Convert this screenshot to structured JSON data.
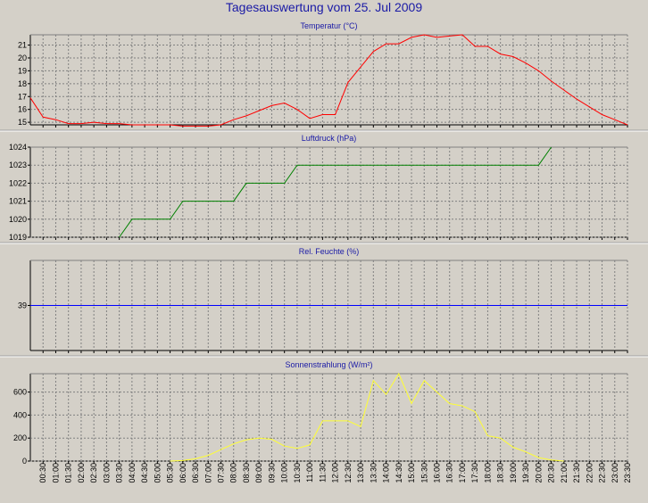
{
  "title": "Tagesauswertung vom 25. Jul 2009",
  "chart_data": [
    {
      "type": "line",
      "title": "Temperatur (°C)",
      "color": "#ff0000",
      "ylim": [
        14.8,
        21.8
      ],
      "yticks": [
        15,
        16,
        17,
        18,
        19,
        20,
        21
      ],
      "x": [
        0,
        0.5,
        1,
        1.5,
        2,
        2.5,
        3,
        3.5,
        4,
        4.5,
        5,
        5.5,
        6,
        6.5,
        7,
        7.5,
        8,
        8.5,
        9,
        9.5,
        10,
        10.5,
        11,
        11.5,
        12,
        12.5,
        13,
        13.5,
        14,
        14.5,
        15,
        15.5,
        16,
        16.5,
        17,
        17.5,
        18,
        18.5,
        19,
        19.5,
        20,
        20.5,
        21,
        21.5,
        22,
        22.5,
        23,
        23.5
      ],
      "y": [
        16.9,
        15.4,
        15.2,
        14.9,
        14.9,
        15.0,
        14.9,
        14.9,
        14.8,
        14.8,
        14.8,
        14.8,
        14.7,
        14.7,
        14.7,
        14.8,
        15.2,
        15.5,
        15.9,
        16.3,
        16.5,
        16.0,
        15.3,
        15.6,
        15.6,
        18.1,
        19.3,
        20.5,
        21.1,
        21.1,
        21.6,
        21.8,
        21.6,
        21.7,
        21.8,
        20.9,
        20.9,
        20.3,
        20.1,
        19.6,
        19.0,
        18.2,
        17.5,
        16.8,
        16.2,
        15.6,
        15.2,
        14.8
      ]
    },
    {
      "type": "line",
      "title": "Luftdruck (hPa)",
      "color": "#008000",
      "ylim": [
        1019,
        1024
      ],
      "yticks": [
        1019,
        1020,
        1021,
        1022,
        1023,
        1024
      ],
      "x": [
        3.5,
        4,
        4.5,
        5,
        5.5,
        6,
        6.5,
        7,
        7.5,
        8,
        8.5,
        9,
        9.5,
        10,
        10.5,
        11,
        11.5,
        12,
        12.5,
        13,
        13.5,
        14,
        14.5,
        15,
        15.5,
        16,
        16.5,
        17,
        17.5,
        18,
        18.5,
        19,
        19.5,
        20,
        20.5
      ],
      "y": [
        1019,
        1020,
        1020,
        1020,
        1020,
        1021,
        1021,
        1021,
        1021,
        1021,
        1022,
        1022,
        1022,
        1022,
        1023,
        1023,
        1023,
        1023,
        1023,
        1023,
        1023,
        1023,
        1023,
        1023,
        1023,
        1023,
        1023,
        1023,
        1023,
        1023,
        1023,
        1023,
        1023,
        1023,
        1024
      ]
    },
    {
      "type": "line",
      "title": "Rel. Feuchte (%)",
      "color": "#0000ff",
      "ylim": [
        38,
        40
      ],
      "yticks": [
        39
      ],
      "x": [
        0,
        23.5
      ],
      "y": [
        39,
        39
      ]
    },
    {
      "type": "line",
      "title": "Sonnenstrahlung (W/m²)",
      "color": "#ffff33",
      "ylim": [
        0,
        760
      ],
      "yticks": [
        0,
        200,
        400,
        600
      ],
      "x": [
        5.5,
        6,
        6.5,
        7,
        7.5,
        8,
        8.5,
        9,
        9.5,
        10,
        10.5,
        11,
        11.5,
        12,
        12.5,
        13,
        13.5,
        14,
        14.5,
        15,
        15.5,
        16,
        16.5,
        17,
        17.5,
        18,
        18.5,
        19,
        19.5,
        20,
        20.5,
        21
      ],
      "y": [
        0,
        5,
        20,
        50,
        100,
        150,
        185,
        200,
        190,
        130,
        110,
        140,
        350,
        350,
        350,
        300,
        700,
        580,
        760,
        500,
        700,
        600,
        500,
        480,
        430,
        220,
        200,
        120,
        80,
        30,
        10,
        0
      ]
    }
  ],
  "xaxis": {
    "ticks": [
      "00:30",
      "01:00",
      "01:30",
      "02:00",
      "02:30",
      "03:00",
      "03:30",
      "04:00",
      "04:30",
      "05:00",
      "05:30",
      "06:00",
      "06:30",
      "07:00",
      "07:30",
      "08:00",
      "08:30",
      "09:00",
      "09:30",
      "10:00",
      "10:30",
      "11:00",
      "11:30",
      "12:00",
      "12:30",
      "13:00",
      "13:30",
      "14:00",
      "14:30",
      "15:00",
      "15:30",
      "16:00",
      "16:30",
      "17:00",
      "17:30",
      "18:00",
      "18:30",
      "19:00",
      "19:30",
      "20:00",
      "20:30",
      "21:00",
      "21:30",
      "22:00",
      "22:30",
      "23:00",
      "23:30"
    ],
    "values": [
      0.5,
      1,
      1.5,
      2,
      2.5,
      3,
      3.5,
      4,
      4.5,
      5,
      5.5,
      6,
      6.5,
      7,
      7.5,
      8,
      8.5,
      9,
      9.5,
      10,
      10.5,
      11,
      11.5,
      12,
      12.5,
      13,
      13.5,
      14,
      14.5,
      15,
      15.5,
      16,
      16.5,
      17,
      17.5,
      18,
      18.5,
      19,
      19.5,
      20,
      20.5,
      21,
      21.5,
      22,
      22.5,
      23,
      23.5
    ],
    "range": [
      0,
      23.5
    ]
  },
  "colors": {
    "background": "#d4d0c8",
    "gridline": "#808080",
    "title": "#1a1aa6"
  }
}
